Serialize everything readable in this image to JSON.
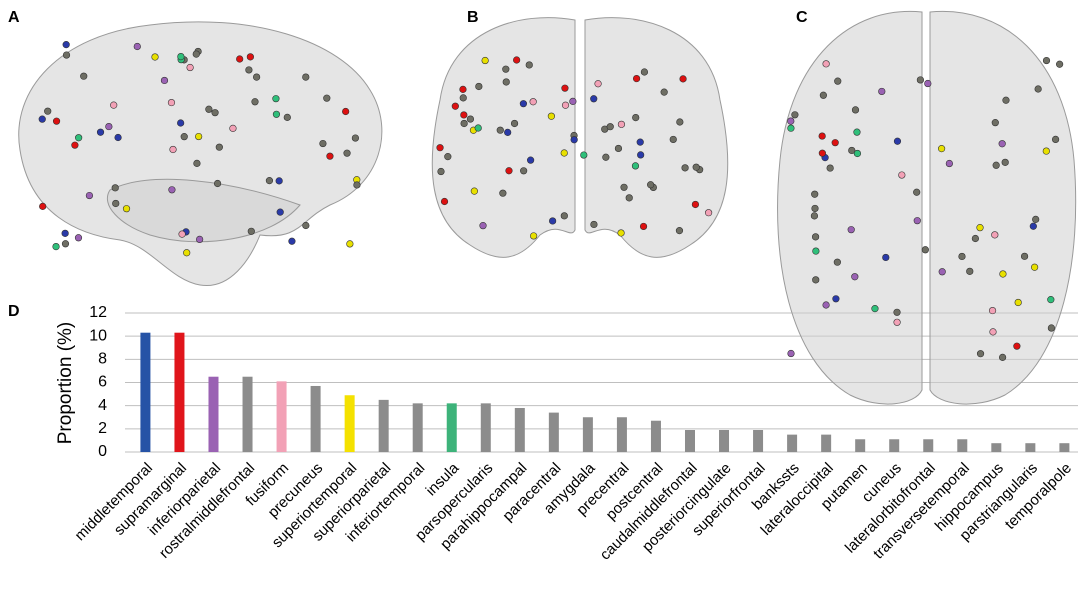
{
  "panel_labels": [
    "A",
    "B",
    "C",
    "D"
  ],
  "chart_data": {
    "type": "bar",
    "y_label": "Proportion (%)",
    "categories": [
      "middletemporal",
      "supramarginal",
      "inferiorparietal",
      "rostralmiddlefrontal",
      "fusiform",
      "precuneus",
      "superiortemporal",
      "superiorparietal",
      "inferiortemporal",
      "insula",
      "parsopercularis",
      "parahippocampal",
      "paracentral",
      "amygdala",
      "precentral",
      "postcentral",
      "caudalmiddlefrontal",
      "posteriorcingulate",
      "superiorfrontal",
      "bankssts",
      "lateraloccipital",
      "putamen",
      "cuneus",
      "lateralorbitofrontal",
      "transversetemporal",
      "hippocampus",
      "parstriangularis",
      "temporalpole"
    ],
    "values": [
      10.3,
      10.3,
      6.5,
      6.5,
      6.1,
      5.7,
      4.9,
      4.5,
      4.2,
      4.2,
      4.2,
      3.8,
      3.4,
      3.0,
      3.0,
      2.7,
      1.9,
      1.9,
      1.9,
      1.5,
      1.5,
      1.1,
      1.1,
      1.1,
      1.1,
      0.76,
      0.76,
      0.76
    ],
    "colors": [
      "#2653a6",
      "#e0151b",
      "#9a62b3",
      "#8c8c8c",
      "#f2a1b6",
      "#8c8c8c",
      "#f4e100",
      "#8c8c8c",
      "#8c8c8c",
      "#3db37a",
      "#8c8c8c",
      "#8c8c8c",
      "#8c8c8c",
      "#8c8c8c",
      "#8c8c8c",
      "#8c8c8c",
      "#8c8c8c",
      "#8c8c8c",
      "#8c8c8c",
      "#8c8c8c",
      "#8c8c8c",
      "#8c8c8c",
      "#8c8c8c",
      "#8c8c8c",
      "#8c8c8c",
      "#8c8c8c",
      "#8c8c8c",
      "#8c8c8c"
    ],
    "ylim": [
      0,
      12
    ],
    "yticks": [
      0,
      2,
      4,
      6,
      8,
      10,
      12
    ],
    "grid": true
  }
}
